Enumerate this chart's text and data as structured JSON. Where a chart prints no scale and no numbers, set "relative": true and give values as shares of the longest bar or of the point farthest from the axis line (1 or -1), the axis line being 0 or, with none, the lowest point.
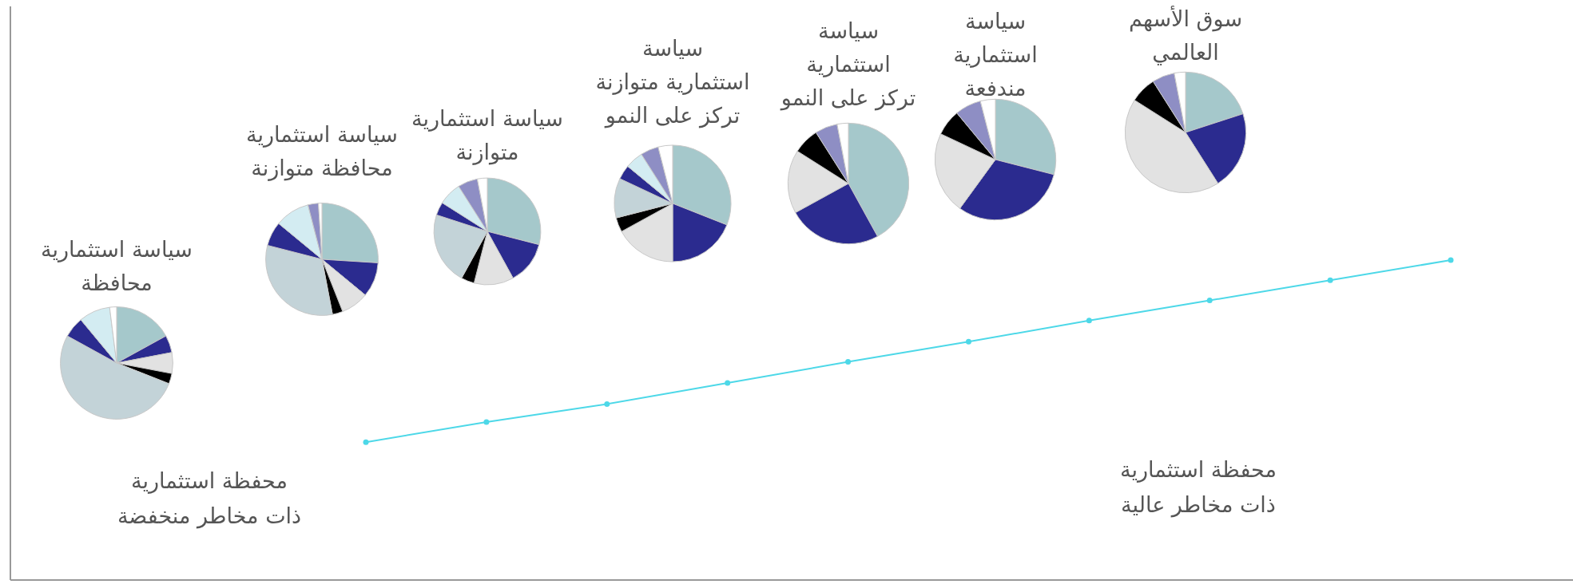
{
  "chart_data": [
    {
      "type": "line",
      "relative": true,
      "categories": [
        null,
        null,
        null,
        null,
        null,
        null,
        null,
        null,
        null,
        null
      ],
      "series": [
        {
          "color": "#4dd8e8",
          "values": [
            0.431,
            0.494,
            0.55,
            0.616,
            0.682,
            0.745,
            0.811,
            0.874,
            0.937,
            1
          ]
        }
      ],
      "marker": "circle",
      "line_style": "solid",
      "annotations": [
        "محفظة استثمارية\nذات مخاطر منخفضة",
        "محفظة استثمارية\nذات مخاطر عالية"
      ]
    },
    {
      "type": "pie",
      "title": "سياسة استثمارية\nمحافظة",
      "categories": [
        null,
        null,
        null,
        null,
        null,
        null,
        null,
        null
      ],
      "values": [
        17,
        5,
        6,
        3,
        52,
        6,
        9,
        2
      ],
      "colors": [
        "#a5c8cb",
        "#2b2b8f",
        "#e2e2e2",
        "#000000",
        "#c3d3d8",
        "#2b2b8f",
        "#d3ecf2",
        "#ffffff"
      ]
    },
    {
      "type": "pie",
      "title": "سياسة استثمارية\nمحافظة متوازنة",
      "categories": [
        null,
        null,
        null,
        null,
        null,
        null,
        null,
        null,
        null
      ],
      "values": [
        26,
        10,
        8,
        3,
        32,
        7,
        10,
        3,
        1
      ],
      "colors": [
        "#a5c8cb",
        "#2b2b8f",
        "#e2e2e2",
        "#000000",
        "#c3d3d8",
        "#2b2b8f",
        "#d3ecf2",
        "#8e8ec4",
        "#ffffff"
      ]
    },
    {
      "type": "pie",
      "title": "سياسة استثمارية\nمتوازنة",
      "categories": [
        null,
        null,
        null,
        null,
        null,
        null,
        null,
        null,
        null
      ],
      "values": [
        29,
        13,
        12,
        4,
        22,
        4,
        7,
        6,
        3
      ],
      "colors": [
        "#a5c8cb",
        "#2b2b8f",
        "#e2e2e2",
        "#000000",
        "#c3d3d8",
        "#2b2b8f",
        "#d3ecf2",
        "#8e8ec4",
        "#ffffff"
      ]
    },
    {
      "type": "pie",
      "title": "سياسة\nاستثمارية  متوازنة\nتركز على النمو",
      "categories": [
        null,
        null,
        null,
        null,
        null,
        null,
        null,
        null,
        null
      ],
      "values": [
        31,
        19,
        17,
        4,
        11,
        4,
        5,
        5,
        4
      ],
      "colors": [
        "#a5c8cb",
        "#2b2b8f",
        "#e2e2e2",
        "#000000",
        "#c3d3d8",
        "#2b2b8f",
        "#d3ecf2",
        "#8e8ec4",
        "#ffffff"
      ]
    },
    {
      "type": "pie",
      "title": "سياسة\nاستثمارية\nتركز على النمو",
      "categories": [
        null,
        null,
        null,
        null,
        null,
        null
      ],
      "values": [
        42,
        25,
        17,
        7,
        6,
        3
      ],
      "colors": [
        "#a5c8cb",
        "#2b2b8f",
        "#e2e2e2",
        "#000000",
        "#8e8ec4",
        "#ffffff"
      ]
    },
    {
      "type": "pie",
      "title": "سياسة\nاستثمارية\nمندفعة",
      "categories": [
        null,
        null,
        null,
        null,
        null,
        null
      ],
      "values": [
        29,
        31,
        22,
        7,
        7,
        4
      ],
      "colors": [
        "#a5c8cb",
        "#2b2b8f",
        "#e2e2e2",
        "#000000",
        "#8e8ec4",
        "#ffffff"
      ]
    },
    {
      "type": "pie",
      "title": "سوق الأسهم\nالعالمي",
      "categories": [
        null,
        null,
        null,
        null,
        null,
        null
      ],
      "values": [
        20,
        21,
        43,
        7,
        6,
        3
      ],
      "colors": [
        "#a5c8cb",
        "#2b2b8f",
        "#e2e2e2",
        "#000000",
        "#8e8ec4",
        "#ffffff"
      ]
    }
  ]
}
